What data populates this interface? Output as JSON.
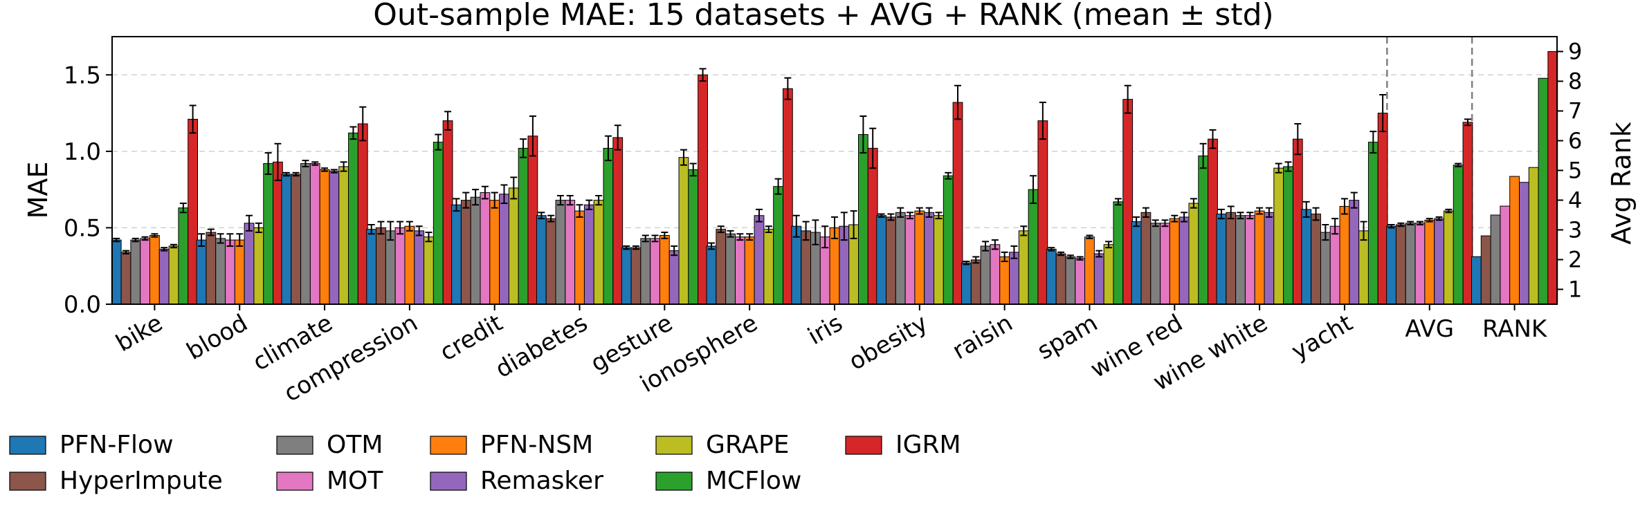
{
  "chart_data": {
    "type": "bar",
    "title": "Out-sample MAE: 15 datasets + AVG + RANK (mean ± std)",
    "ylabel": "MAE",
    "y2label": "Avg Rank",
    "ylim": [
      0,
      1.75
    ],
    "y2lim": [
      0.5,
      9.5
    ],
    "yticks": [
      "0.0",
      "0.5",
      "1.0",
      "1.5"
    ],
    "yticks_values": [
      0,
      0.5,
      1.0,
      1.5
    ],
    "y2ticks": [
      "1",
      "2",
      "3",
      "4",
      "5",
      "6",
      "7",
      "8",
      "9"
    ],
    "y2ticks_values": [
      1,
      2,
      3,
      4,
      5,
      6,
      7,
      8,
      9
    ],
    "grid": "horizontal dashed",
    "legend_position": "bottom",
    "methods": [
      "PFN-Flow",
      "HyperImpute",
      "OTM",
      "MOT",
      "PFN-NSM",
      "Remasker",
      "GRAPE",
      "MCFlow",
      "IGRM"
    ],
    "legend_order": [
      "PFN-Flow",
      "HyperImpute",
      "OTM",
      "MOT",
      "PFN-NSM",
      "Remasker",
      "GRAPE",
      "MCFlow",
      "IGRM"
    ],
    "colors": [
      "#1f77b4",
      "#8c564b",
      "#7f7f7f",
      "#e377c2",
      "#ff7f0e",
      "#9467bd",
      "#bcbd22",
      "#2ca02c",
      "#d62728"
    ],
    "categories": [
      "bike",
      "blood",
      "climate",
      "compression",
      "credit",
      "diabetes",
      "gesture",
      "ionosphere",
      "iris",
      "obesity",
      "raisin",
      "spam",
      "wine red",
      "wine white",
      "yacht",
      "AVG",
      "RANK"
    ],
    "means": [
      [
        0.42,
        0.34,
        0.42,
        0.43,
        0.45,
        0.36,
        0.38,
        0.63,
        1.21
      ],
      [
        0.42,
        0.47,
        0.43,
        0.42,
        0.42,
        0.53,
        0.5,
        0.92,
        0.93
      ],
      [
        0.85,
        0.85,
        0.92,
        0.92,
        0.88,
        0.87,
        0.9,
        1.12,
        1.18
      ],
      [
        0.49,
        0.5,
        0.48,
        0.5,
        0.51,
        0.48,
        0.44,
        1.06,
        1.2
      ],
      [
        0.65,
        0.68,
        0.7,
        0.73,
        0.68,
        0.72,
        0.76,
        1.02,
        1.1
      ],
      [
        0.58,
        0.56,
        0.68,
        0.68,
        0.61,
        0.65,
        0.68,
        1.02,
        1.09
      ],
      [
        0.37,
        0.37,
        0.43,
        0.43,
        0.45,
        0.35,
        0.96,
        0.88,
        1.5
      ],
      [
        0.38,
        0.49,
        0.46,
        0.44,
        0.44,
        0.58,
        0.49,
        0.77,
        1.41
      ],
      [
        0.51,
        0.48,
        0.47,
        0.44,
        0.5,
        0.51,
        0.52,
        1.11,
        1.02
      ],
      [
        0.58,
        0.57,
        0.6,
        0.58,
        0.61,
        0.6,
        0.58,
        0.84,
        1.32
      ],
      [
        0.27,
        0.29,
        0.38,
        0.39,
        0.31,
        0.34,
        0.48,
        0.75,
        1.2
      ],
      [
        0.36,
        0.33,
        0.31,
        0.3,
        0.44,
        0.33,
        0.39,
        0.67,
        1.34
      ],
      [
        0.54,
        0.6,
        0.53,
        0.53,
        0.56,
        0.57,
        0.66,
        0.97,
        1.08
      ],
      [
        0.59,
        0.6,
        0.58,
        0.58,
        0.61,
        0.6,
        0.89,
        0.9,
        1.08
      ],
      [
        0.62,
        0.59,
        0.47,
        0.51,
        0.64,
        0.68,
        0.48,
        1.06,
        1.25
      ],
      [
        0.51,
        0.52,
        0.53,
        0.53,
        0.55,
        0.56,
        0.61,
        0.91,
        1.19
      ],
      [
        2.1,
        2.8,
        3.5,
        3.8,
        4.8,
        4.6,
        5.1,
        8.1,
        9.0
      ]
    ],
    "stds": [
      [
        0.01,
        0.01,
        0.01,
        0.01,
        0.01,
        0.01,
        0.01,
        0.03,
        0.09
      ],
      [
        0.04,
        0.02,
        0.03,
        0.04,
        0.04,
        0.05,
        0.03,
        0.07,
        0.12
      ],
      [
        0.01,
        0.01,
        0.02,
        0.01,
        0.01,
        0.01,
        0.03,
        0.04,
        0.11
      ],
      [
        0.03,
        0.04,
        0.06,
        0.04,
        0.03,
        0.03,
        0.03,
        0.05,
        0.06
      ],
      [
        0.04,
        0.05,
        0.05,
        0.04,
        0.05,
        0.06,
        0.07,
        0.06,
        0.13
      ],
      [
        0.02,
        0.02,
        0.03,
        0.03,
        0.04,
        0.03,
        0.03,
        0.08,
        0.08
      ],
      [
        0.01,
        0.01,
        0.02,
        0.02,
        0.02,
        0.03,
        0.05,
        0.04,
        0.04
      ],
      [
        0.02,
        0.02,
        0.02,
        0.02,
        0.02,
        0.04,
        0.02,
        0.05,
        0.07
      ],
      [
        0.07,
        0.06,
        0.08,
        0.07,
        0.07,
        0.09,
        0.09,
        0.12,
        0.13
      ],
      [
        0.01,
        0.02,
        0.03,
        0.02,
        0.02,
        0.03,
        0.02,
        0.02,
        0.11
      ],
      [
        0.01,
        0.02,
        0.03,
        0.03,
        0.03,
        0.04,
        0.03,
        0.09,
        0.12
      ],
      [
        0.01,
        0.01,
        0.01,
        0.01,
        0.01,
        0.02,
        0.02,
        0.02,
        0.09
      ],
      [
        0.03,
        0.03,
        0.02,
        0.02,
        0.02,
        0.03,
        0.03,
        0.08,
        0.06
      ],
      [
        0.03,
        0.04,
        0.02,
        0.02,
        0.02,
        0.03,
        0.03,
        0.03,
        0.1
      ],
      [
        0.05,
        0.04,
        0.05,
        0.05,
        0.05,
        0.05,
        0.06,
        0.07,
        0.12
      ],
      [
        0.01,
        0.01,
        0.01,
        0.01,
        0.01,
        0.01,
        0.01,
        0.01,
        0.02
      ],
      [
        0,
        0,
        0,
        0,
        0,
        0,
        0,
        0,
        0
      ]
    ],
    "rank_uses_secondary_axis": true,
    "rank_has_error_bars": false
  }
}
